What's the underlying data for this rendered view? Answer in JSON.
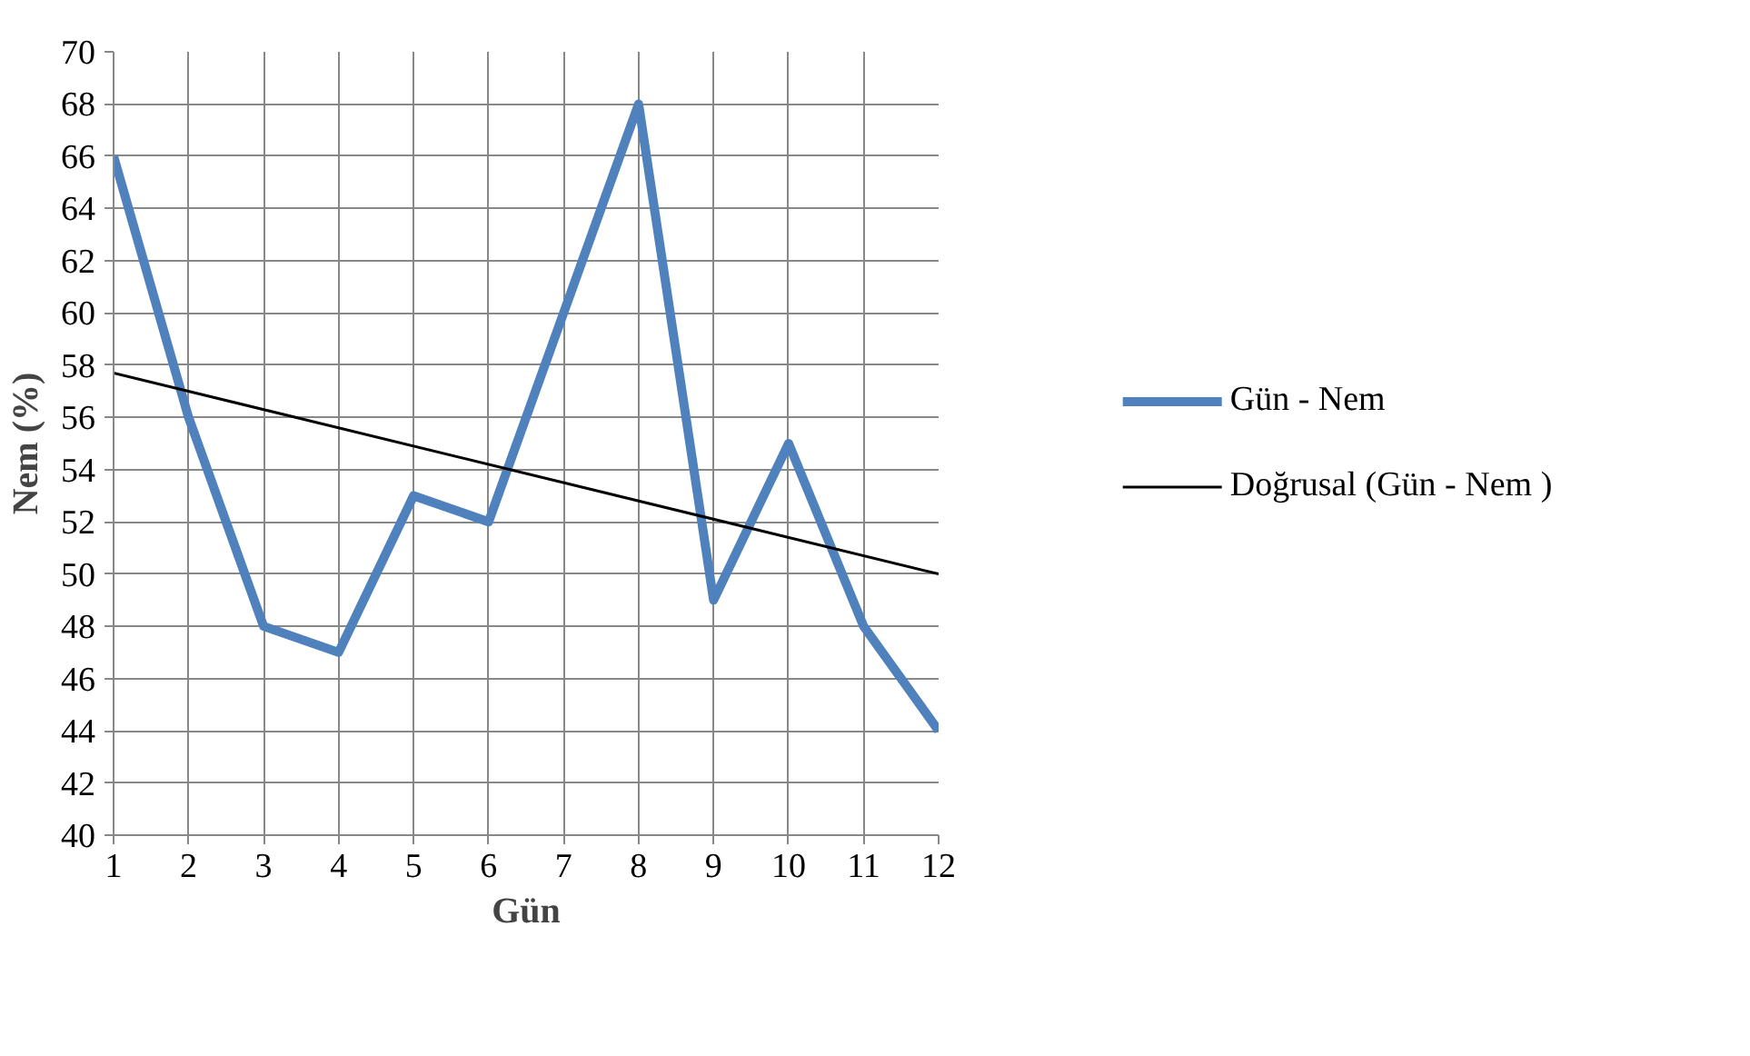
{
  "chart_data": {
    "type": "line",
    "xlabel": "Gün",
    "ylabel": "Nem (%)",
    "x": [
      1,
      2,
      3,
      4,
      5,
      6,
      7,
      8,
      9,
      10,
      11,
      12
    ],
    "series": [
      {
        "name": "Gün - Nem",
        "color": "#4f81bd",
        "values": [
          66,
          56,
          48,
          47,
          53,
          52,
          60,
          68,
          49,
          55,
          48,
          44
        ]
      },
      {
        "name": "Doğrusal (Gün - Nem )",
        "color": "#000000",
        "type": "line",
        "x": [
          1,
          12
        ],
        "values": [
          57.7,
          50.0
        ]
      }
    ],
    "xlim": [
      1,
      12
    ],
    "xticks": [
      1,
      2,
      3,
      4,
      5,
      6,
      7,
      8,
      9,
      10,
      11,
      12
    ],
    "ylim": [
      40,
      70
    ],
    "yticks": [
      40,
      42,
      44,
      46,
      48,
      50,
      52,
      54,
      56,
      58,
      60,
      62,
      64,
      66,
      68,
      70
    ],
    "grid": true,
    "legend": "right",
    "marker": "none",
    "line_style": "solid"
  }
}
